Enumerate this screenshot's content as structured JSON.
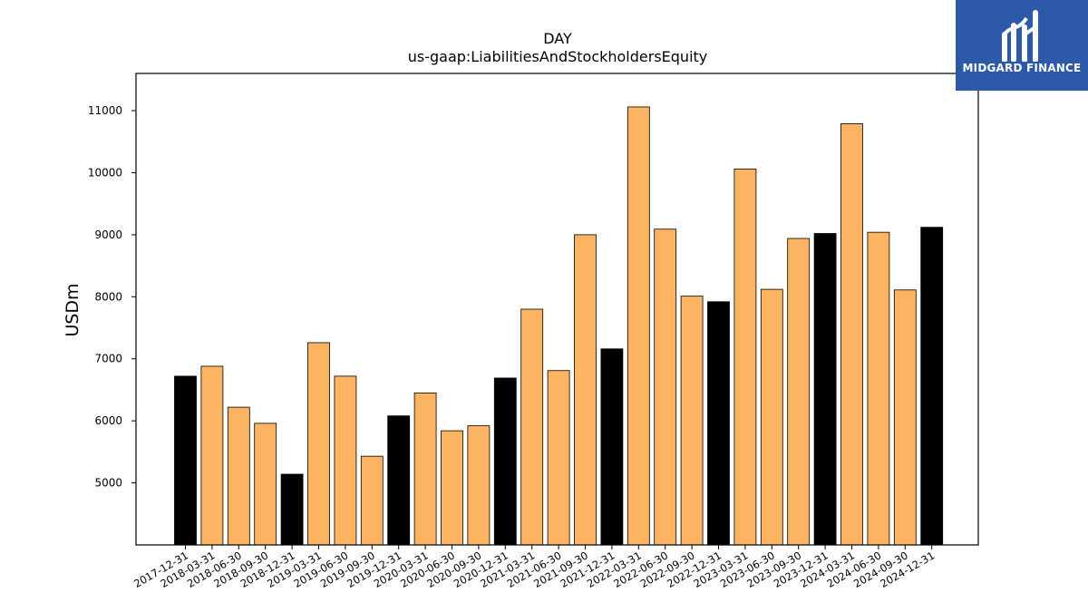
{
  "chart_data": {
    "type": "bar",
    "title": "DAY",
    "subtitle": "us-gaap:LiabilitiesAndStockholdersEquity",
    "ylabel": "USDm",
    "xlabel": "",
    "ylim": [
      4000,
      11600
    ],
    "yticks": [
      5000,
      6000,
      7000,
      8000,
      9000,
      10000,
      11000
    ],
    "grid": false,
    "categories": [
      "2017-12-31",
      "2018-03-31",
      "2018-06-30",
      "2018-09-30",
      "2018-12-31",
      "2019-03-31",
      "2019-06-30",
      "2019-09-30",
      "2019-12-31",
      "2020-03-31",
      "2020-06-30",
      "2020-09-30",
      "2020-12-31",
      "2021-03-31",
      "2021-06-30",
      "2021-09-30",
      "2021-12-31",
      "2022-03-31",
      "2022-06-30",
      "2022-09-30",
      "2022-12-31",
      "2023-03-31",
      "2023-06-30",
      "2023-09-30",
      "2023-12-31",
      "2024-03-31",
      "2024-06-30",
      "2024-09-30",
      "2024-12-31"
    ],
    "values": [
      6720,
      6880,
      6220,
      5960,
      5140,
      7260,
      6720,
      5430,
      6080,
      6450,
      5840,
      5920,
      6690,
      7800,
      6810,
      9000,
      7160,
      11060,
      9090,
      8010,
      7920,
      10060,
      8120,
      8940,
      9020,
      10790,
      9040,
      8110,
      9120
    ],
    "colors": {
      "year_end": "#000000",
      "quarter": "#fdb462",
      "edge": "#000000"
    }
  },
  "logo": {
    "name": "MIDGARD FINANCE",
    "background": "#2d5aa8"
  }
}
